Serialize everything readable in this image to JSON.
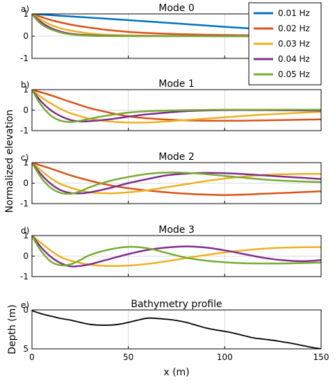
{
  "legend_colors": {
    "0.01 Hz": "#0072BD",
    "0.02 Hz": "#D95319",
    "0.03 Hz": "#EDB120",
    "0.04 Hz": "#7E2F8E",
    "0.05 Hz": "#77AC30"
  },
  "shared": {
    "ylabel": "Normalized elevation",
    "xlabel": "x (m)",
    "xticks": [
      0,
      50,
      100,
      150
    ]
  },
  "chart_data": [
    {
      "type": "line",
      "letter": "a)",
      "title": "Mode 0",
      "xlabel": "",
      "ylabel": "",
      "xlim": [
        0,
        150
      ],
      "ylim": [
        -1,
        1
      ],
      "yticks": [
        -1,
        0,
        1
      ],
      "legend": {
        "placement": "top-right",
        "entries": [
          "0.01 Hz",
          "0.02 Hz",
          "0.03 Hz",
          "0.04 Hz",
          "0.05 Hz"
        ]
      },
      "grid": "vertical at x=50,100; horizontal at y=0",
      "series": [
        {
          "name": "0.01 Hz",
          "x": [
            0,
            25,
            50,
            75,
            100,
            125,
            150
          ],
          "y": [
            1.0,
            0.86,
            0.72,
            0.57,
            0.42,
            0.28,
            0.15
          ]
        },
        {
          "name": "0.02 Hz",
          "x": [
            0,
            10,
            20,
            30,
            40,
            50,
            60,
            80,
            100,
            120,
            150
          ],
          "y": [
            1.0,
            0.72,
            0.52,
            0.38,
            0.27,
            0.19,
            0.14,
            0.08,
            0.05,
            0.03,
            0.02
          ]
        },
        {
          "name": "0.03 Hz",
          "x": [
            0,
            5,
            10,
            15,
            20,
            30,
            40,
            60,
            100,
            150
          ],
          "y": [
            1.0,
            0.72,
            0.5,
            0.35,
            0.25,
            0.12,
            0.06,
            0.02,
            0.0,
            0.0
          ]
        },
        {
          "name": "0.04 Hz",
          "x": [
            0,
            3,
            6,
            10,
            15,
            20,
            30,
            50,
            100,
            150
          ],
          "y": [
            1.0,
            0.75,
            0.55,
            0.36,
            0.2,
            0.11,
            0.04,
            0.01,
            0.0,
            0.0
          ]
        },
        {
          "name": "0.05 Hz",
          "x": [
            0,
            2,
            4,
            7,
            10,
            15,
            20,
            30,
            50,
            150
          ],
          "y": [
            1.0,
            0.78,
            0.6,
            0.42,
            0.3,
            0.16,
            0.08,
            0.02,
            0.0,
            0.0
          ]
        }
      ]
    },
    {
      "type": "line",
      "letter": "b)",
      "title": "Mode 1",
      "xlabel": "",
      "ylabel": "",
      "xlim": [
        0,
        150
      ],
      "ylim": [
        -1,
        1
      ],
      "yticks": [
        -1,
        0,
        1
      ],
      "grid": "vertical at x=50,100; horizontal at y=0",
      "series": [
        {
          "name": "0.02 Hz",
          "x": [
            0,
            10,
            20,
            30,
            40,
            50,
            60,
            80,
            100,
            120,
            150
          ],
          "y": [
            1.0,
            0.72,
            0.4,
            0.1,
            -0.12,
            -0.3,
            -0.4,
            -0.5,
            -0.52,
            -0.5,
            -0.45
          ]
        },
        {
          "name": "0.03 Hz",
          "x": [
            0,
            5,
            10,
            15,
            20,
            30,
            40,
            50,
            60,
            70,
            80,
            100,
            120,
            150
          ],
          "y": [
            1.0,
            0.62,
            0.32,
            0.05,
            -0.15,
            -0.42,
            -0.55,
            -0.6,
            -0.6,
            -0.55,
            -0.48,
            -0.35,
            -0.22,
            -0.08
          ]
        },
        {
          "name": "0.04 Hz",
          "x": [
            0,
            5,
            10,
            15,
            20,
            25,
            30,
            40,
            50,
            60,
            80,
            100,
            120,
            150
          ],
          "y": [
            1.0,
            0.4,
            -0.02,
            -0.3,
            -0.48,
            -0.55,
            -0.54,
            -0.45,
            -0.32,
            -0.2,
            -0.05,
            0.0,
            0.0,
            -0.02
          ]
        },
        {
          "name": "0.05 Hz",
          "x": [
            0,
            3,
            6,
            10,
            15,
            20,
            25,
            30,
            40,
            50,
            60,
            80,
            100,
            120,
            150
          ],
          "y": [
            1.0,
            0.5,
            0.1,
            -0.28,
            -0.52,
            -0.58,
            -0.52,
            -0.42,
            -0.25,
            -0.12,
            -0.05,
            0.0,
            0.02,
            0.02,
            0.02
          ]
        }
      ]
    },
    {
      "type": "line",
      "letter": "c)",
      "title": "Mode 2",
      "xlabel": "",
      "ylabel": "",
      "xlim": [
        0,
        150
      ],
      "ylim": [
        -1,
        1
      ],
      "yticks": [
        -1,
        0,
        1
      ],
      "grid": "vertical at x=50,100; horizontal at y=0",
      "series": [
        {
          "name": "0.02 Hz",
          "x": [
            0,
            10,
            20,
            30,
            40,
            50,
            60,
            70,
            80,
            90,
            100,
            110,
            120,
            130,
            140,
            150
          ],
          "y": [
            1.0,
            0.7,
            0.38,
            0.12,
            -0.1,
            -0.25,
            -0.36,
            -0.45,
            -0.52,
            -0.56,
            -0.58,
            -0.56,
            -0.52,
            -0.48,
            -0.44,
            -0.4
          ]
        },
        {
          "name": "0.03 Hz",
          "x": [
            0,
            5,
            10,
            15,
            20,
            25,
            30,
            40,
            50,
            60,
            70,
            80,
            90,
            100,
            110,
            120,
            130,
            140,
            150
          ],
          "y": [
            1.0,
            0.6,
            0.22,
            -0.05,
            -0.22,
            -0.35,
            -0.45,
            -0.5,
            -0.45,
            -0.35,
            -0.2,
            -0.05,
            0.1,
            0.22,
            0.32,
            0.4,
            0.43,
            0.45,
            0.45
          ]
        },
        {
          "name": "0.04 Hz",
          "x": [
            0,
            5,
            10,
            15,
            20,
            25,
            30,
            40,
            50,
            60,
            70,
            80,
            90,
            100,
            110,
            120,
            130,
            140,
            150
          ],
          "y": [
            1.0,
            0.4,
            -0.05,
            -0.35,
            -0.48,
            -0.5,
            -0.45,
            -0.25,
            0.0,
            0.2,
            0.38,
            0.46,
            0.5,
            0.48,
            0.44,
            0.38,
            0.32,
            0.26,
            0.2
          ]
        },
        {
          "name": "0.05 Hz",
          "x": [
            0,
            3,
            6,
            10,
            15,
            20,
            25,
            30,
            40,
            50,
            60,
            70,
            80,
            90,
            100,
            110,
            120,
            130,
            140,
            150
          ],
          "y": [
            1.0,
            0.52,
            0.12,
            -0.25,
            -0.48,
            -0.52,
            -0.4,
            -0.2,
            0.1,
            0.3,
            0.45,
            0.52,
            0.5,
            0.44,
            0.35,
            0.26,
            0.18,
            0.12,
            0.08,
            0.05
          ]
        }
      ]
    },
    {
      "type": "line",
      "letter": "d)",
      "title": "Mode 3",
      "xlabel": "",
      "ylabel": "",
      "xlim": [
        0,
        150
      ],
      "ylim": [
        -1,
        1
      ],
      "yticks": [
        -1,
        0,
        1
      ],
      "grid": "vertical at x=50,100; horizontal at y=0",
      "series": [
        {
          "name": "0.03 Hz",
          "x": [
            0,
            5,
            10,
            15,
            20,
            30,
            40,
            50,
            60,
            70,
            80,
            90,
            100,
            110,
            120,
            130,
            140,
            150
          ],
          "y": [
            1.0,
            0.62,
            0.25,
            -0.05,
            -0.22,
            -0.42,
            -0.48,
            -0.46,
            -0.38,
            -0.25,
            -0.1,
            0.05,
            0.18,
            0.28,
            0.36,
            0.41,
            0.43,
            0.44
          ]
        },
        {
          "name": "0.04 Hz",
          "x": [
            0,
            5,
            10,
            15,
            20,
            25,
            30,
            40,
            50,
            60,
            70,
            80,
            90,
            100,
            110,
            120,
            130,
            140,
            150
          ],
          "y": [
            1.0,
            0.4,
            -0.05,
            -0.35,
            -0.5,
            -0.48,
            -0.4,
            -0.15,
            0.1,
            0.3,
            0.42,
            0.47,
            0.42,
            0.28,
            0.1,
            -0.08,
            -0.2,
            -0.25,
            -0.2
          ]
        },
        {
          "name": "0.05 Hz",
          "x": [
            0,
            3,
            6,
            10,
            15,
            20,
            25,
            30,
            40,
            50,
            60,
            70,
            80,
            90,
            100,
            110,
            120,
            130,
            140,
            150
          ],
          "y": [
            1.0,
            0.5,
            0.1,
            -0.28,
            -0.45,
            -0.4,
            -0.2,
            0.05,
            0.32,
            0.45,
            0.38,
            0.15,
            -0.08,
            -0.22,
            -0.3,
            -0.35,
            -0.36,
            -0.36,
            -0.34,
            -0.32
          ]
        }
      ]
    },
    {
      "type": "line",
      "letter": "e)",
      "title": "Bathymetry profile",
      "xlabel": "x (m)",
      "ylabel": "Depth (m)",
      "xlim": [
        0,
        150
      ],
      "ylim": [
        0,
        5
      ],
      "yaxis_reversed": true,
      "yticks": [
        0,
        5
      ],
      "grid": "vertical at x=50,100",
      "series": [
        {
          "name": "",
          "color": "#000000",
          "x": [
            0,
            5,
            10,
            15,
            20,
            25,
            30,
            35,
            40,
            45,
            50,
            55,
            60,
            65,
            70,
            75,
            80,
            85,
            90,
            95,
            100,
            105,
            110,
            115,
            120,
            125,
            130,
            135,
            140,
            145,
            150
          ],
          "y": [
            0.1,
            0.5,
            0.8,
            1.1,
            1.3,
            1.6,
            1.85,
            1.95,
            1.95,
            1.85,
            1.6,
            1.3,
            1.05,
            1.1,
            1.2,
            1.35,
            1.6,
            1.95,
            2.3,
            2.55,
            2.75,
            3.0,
            3.3,
            3.6,
            3.75,
            3.9,
            4.1,
            4.3,
            4.55,
            4.8,
            5.0
          ]
        }
      ]
    }
  ]
}
